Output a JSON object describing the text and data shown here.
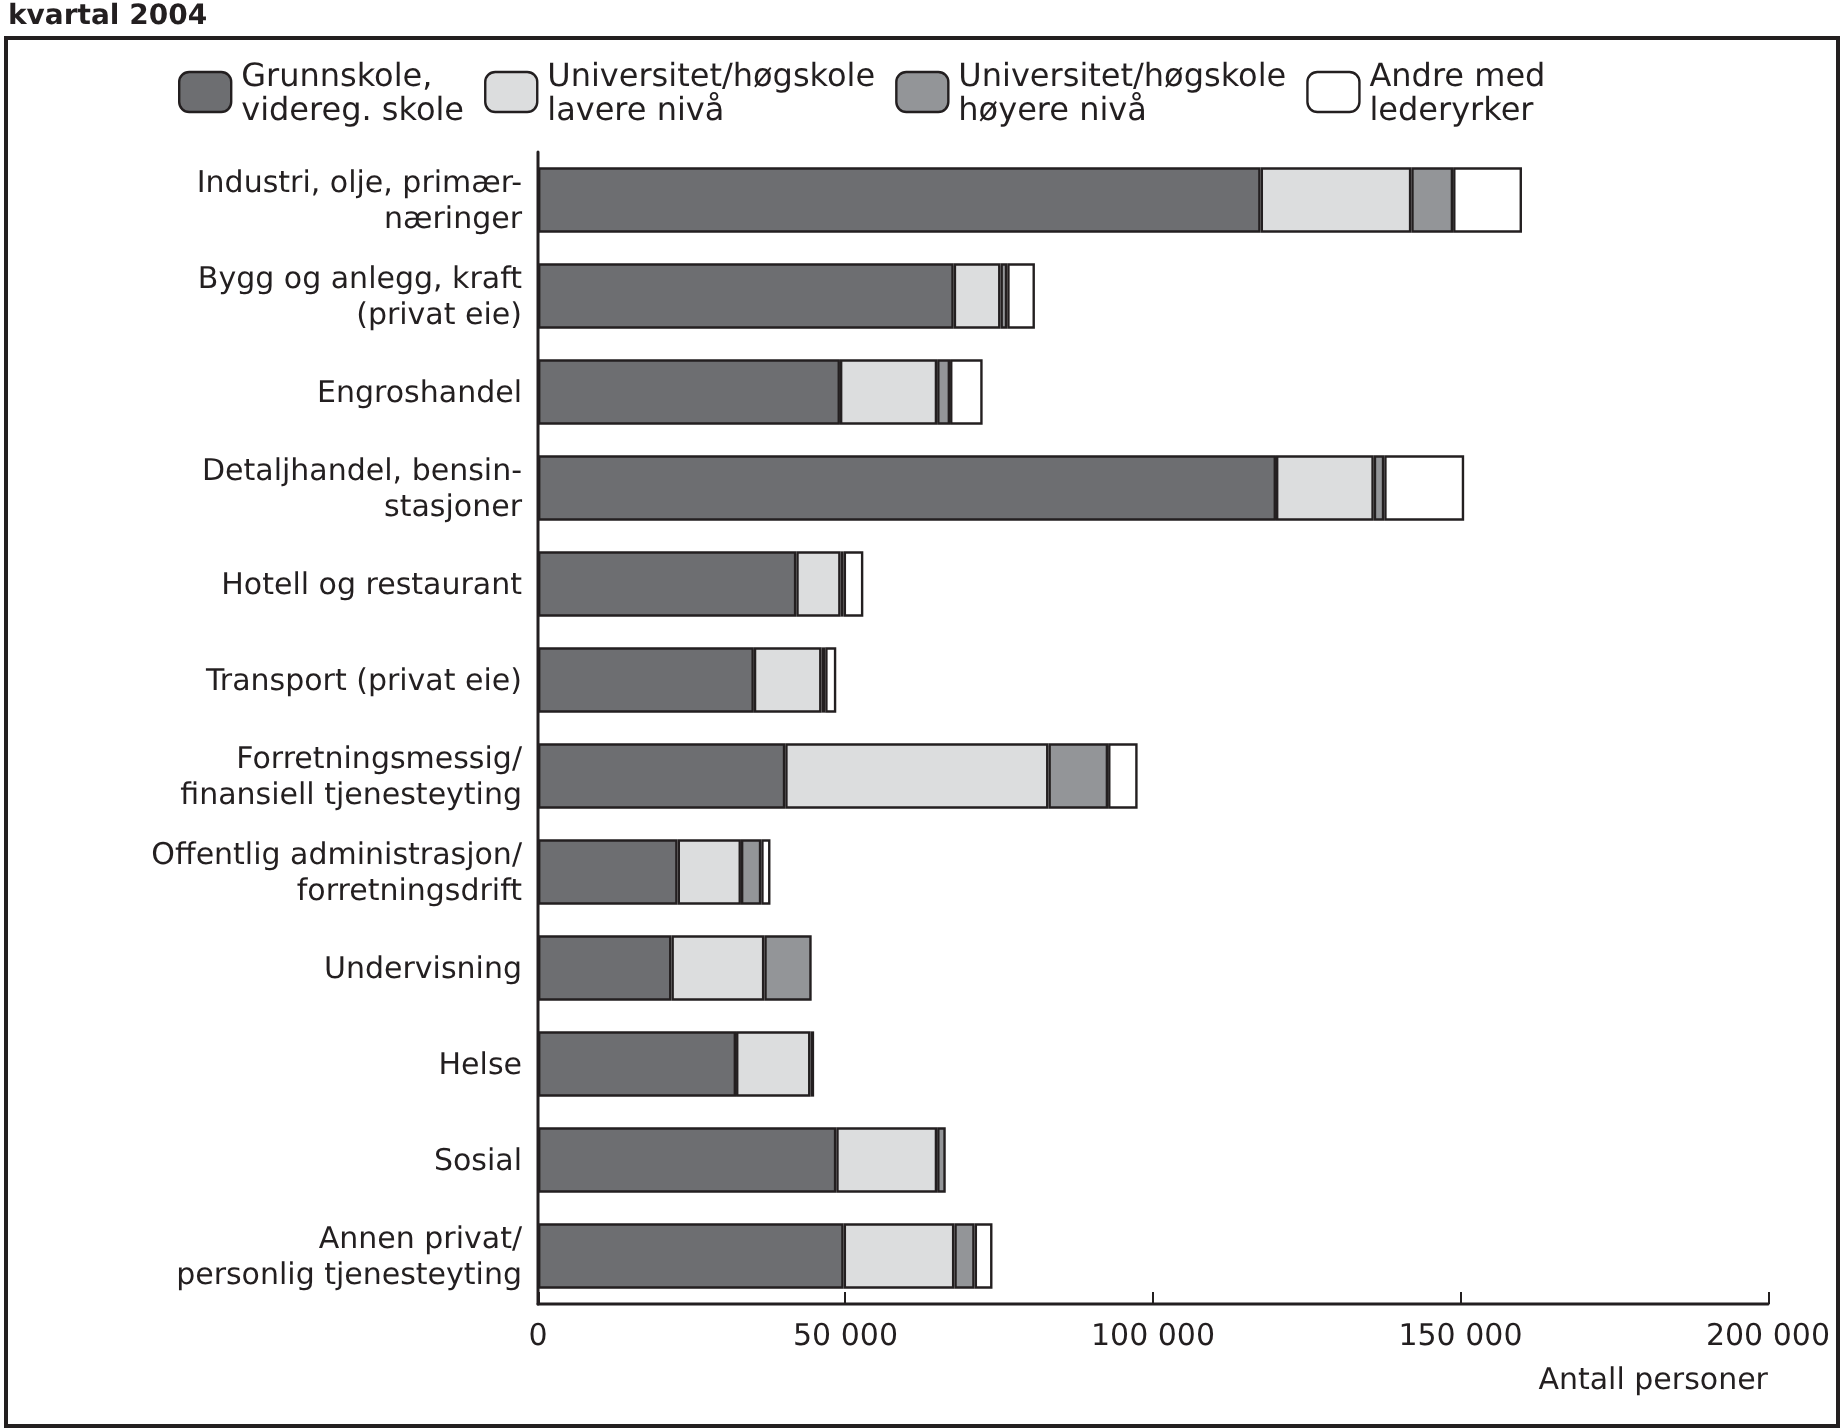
{
  "chart_data": {
    "type": "bar",
    "orientation": "horizontal",
    "stacked": true,
    "title": "kvartal 2004",
    "xlabel": "Antall personer",
    "categories": [
      "Industri, olje, primær-\nnæringer",
      "Bygg og anlegg, kraft\n(privat eie)",
      "Engroshandel",
      "Detaljhandel, bensin-\nstasjoner",
      "Hotell og restaurant",
      "Transport (privat eie)",
      "Forretningsmessig/\nfinansiell tjenesteyting",
      "Offentlig administrasjon/\nforretningsdrift",
      "Undervisning",
      "Helse",
      "Sosial",
      "Annen privat/\npersonlig tjenesteyting"
    ],
    "series": [
      {
        "name": "Grunnskole,\nvidereg. skole",
        "color": "#6d6e71",
        "values": [
          117500,
          67600,
          49100,
          120000,
          42000,
          35100,
          40200,
          22700,
          21700,
          32200,
          48500,
          49700
        ]
      },
      {
        "name": "Universitet/høgskole\nlavere nivå",
        "color": "#dcddde",
        "values": [
          24500,
          7600,
          15800,
          15900,
          7200,
          11000,
          42800,
          10300,
          15100,
          12100,
          16400,
          18000
        ]
      },
      {
        "name": "Universitet/høgskole\nhøyere nivå",
        "color": "#939598",
        "values": [
          6800,
          1100,
          2100,
          1700,
          500,
          600,
          9700,
          3300,
          7700,
          600,
          1400,
          3300
        ]
      },
      {
        "name": "Andre med\nlederyrker",
        "color": "#ffffff",
        "values": [
          11200,
          4500,
          5300,
          13000,
          3200,
          1800,
          4800,
          1500,
          null,
          null,
          null,
          2900
        ]
      }
    ],
    "xlim": [
      0,
      200000
    ],
    "xticks": [
      0,
      50000,
      100000,
      150000,
      200000
    ],
    "legend": "top",
    "grid": false
  }
}
